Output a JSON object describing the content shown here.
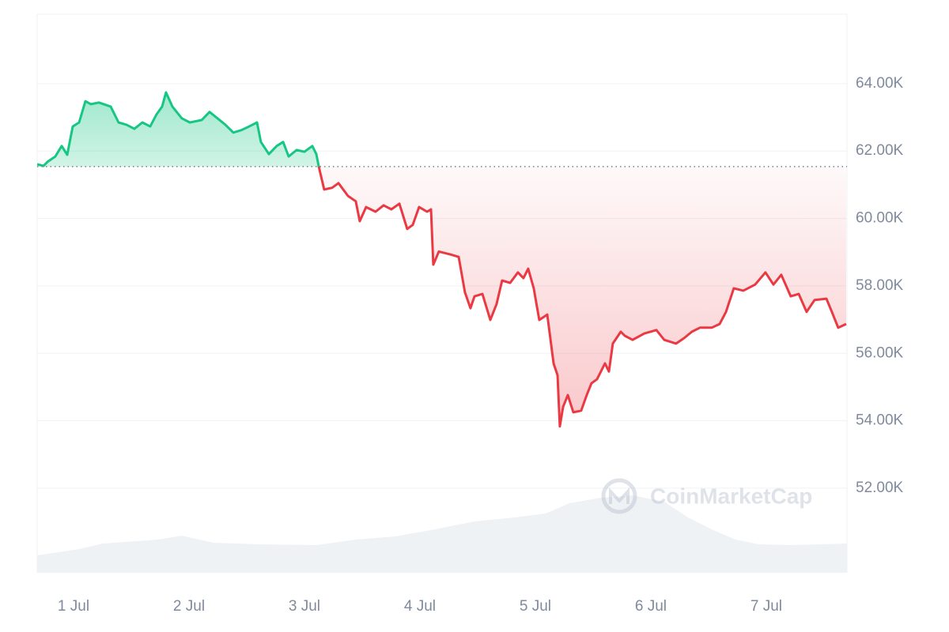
{
  "chart_data": {
    "type": "line",
    "watermark": "CoinMarketCap",
    "x": [
      0.685,
      0.74,
      0.774,
      0.842,
      0.897,
      0.945,
      0.993,
      1.048,
      1.103,
      1.151,
      1.219,
      1.322,
      1.39,
      1.459,
      1.527,
      1.596,
      1.664,
      1.719,
      1.767,
      1.801,
      1.856,
      1.938,
      2.007,
      2.11,
      2.178,
      2.247,
      2.315,
      2.384,
      2.452,
      2.521,
      2.589,
      2.623,
      2.692,
      2.76,
      2.815,
      2.863,
      2.932,
      3.0,
      3.068,
      3.103,
      3.123,
      3.171,
      3.24,
      3.295,
      3.377,
      3.445,
      3.479,
      3.534,
      3.616,
      3.685,
      3.753,
      3.822,
      3.89,
      3.938,
      3.993,
      4.062,
      4.096,
      4.116,
      4.164,
      4.267,
      4.336,
      4.39,
      4.438,
      4.473,
      4.541,
      4.61,
      4.664,
      4.712,
      4.781,
      4.849,
      4.897,
      4.938,
      4.986,
      5.034,
      5.103,
      5.158,
      5.192,
      5.212,
      5.24,
      5.281,
      5.329,
      5.397,
      5.445,
      5.486,
      5.534,
      5.603,
      5.637,
      5.671,
      5.74,
      5.774,
      5.842,
      5.945,
      6.048,
      6.116,
      6.219,
      6.288,
      6.356,
      6.425,
      6.527,
      6.596,
      6.651,
      6.719,
      6.801,
      6.904,
      6.993,
      7.062,
      7.13,
      7.212,
      7.281,
      7.349,
      7.418,
      7.521,
      7.568,
      7.623,
      7.692
    ],
    "series": [
      {
        "name": "Price",
        "color_up": "#16c784",
        "color_down": "#ea3943",
        "values": [
          61610,
          61560,
          61680,
          61840,
          62150,
          61890,
          62730,
          62850,
          63480,
          63390,
          63440,
          63320,
          62850,
          62780,
          62660,
          62850,
          62730,
          63090,
          63320,
          63740,
          63320,
          62970,
          62850,
          62920,
          63160,
          62970,
          62780,
          62550,
          62620,
          62730,
          62850,
          62270,
          61910,
          62150,
          62270,
          61840,
          62030,
          61980,
          62150,
          61910,
          61560,
          60860,
          60910,
          61050,
          60670,
          60510,
          59920,
          60340,
          60200,
          60390,
          60270,
          60440,
          59690,
          59810,
          60340,
          60200,
          60270,
          58630,
          59020,
          58930,
          58860,
          57810,
          57340,
          57690,
          57760,
          56990,
          57460,
          58160,
          58090,
          58400,
          58230,
          58510,
          57930,
          56990,
          57150,
          55700,
          55350,
          53830,
          54410,
          54760,
          54250,
          54300,
          54760,
          55110,
          55230,
          55700,
          55460,
          56290,
          56640,
          56520,
          56400,
          56590,
          56690,
          56400,
          56290,
          56450,
          56640,
          56760,
          56760,
          56870,
          57230,
          57930,
          57860,
          58040,
          58400,
          58040,
          58330,
          57690,
          57760,
          57230,
          57580,
          57620,
          57230,
          56760,
          56870
        ]
      }
    ],
    "baseline": 61540,
    "volume": {
      "color": "#eff2f5",
      "axis": "y2",
      "x": [
        0.685,
        1.048,
        1.253,
        1.733,
        1.938,
        2.212,
        2.623,
        3.103,
        3.445,
        3.788,
        4.13,
        4.473,
        4.815,
        5.089,
        5.295,
        5.568,
        5.842,
        6.116,
        6.322,
        6.527,
        6.733,
        6.938,
        7.212,
        7.699
      ],
      "values": [
        22,
        30,
        37,
        42,
        47,
        38,
        36,
        35,
        42,
        46,
        55,
        65,
        70,
        75,
        88,
        95,
        98,
        90,
        70,
        55,
        42,
        36,
        35,
        37
      ]
    },
    "xlim": [
      0.685,
      7.699
    ],
    "xticks": [
      {
        "value": 1,
        "label": "1 Jul"
      },
      {
        "value": 2,
        "label": "2 Jul"
      },
      {
        "value": 3,
        "label": "3 Jul"
      },
      {
        "value": 4,
        "label": "4 Jul"
      },
      {
        "value": 5,
        "label": "5 Jul"
      },
      {
        "value": 6,
        "label": "6 Jul"
      },
      {
        "value": 7,
        "label": "7 Jul"
      }
    ],
    "ylim": [
      49490,
      66060
    ],
    "yticks": [
      {
        "value": 52000,
        "label": "52.00K"
      },
      {
        "value": 54000,
        "label": "54.00K"
      },
      {
        "value": 56000,
        "label": "56.00K"
      },
      {
        "value": 58000,
        "label": "58.00K"
      },
      {
        "value": 60000,
        "label": "60.00K"
      },
      {
        "value": 62000,
        "label": "62.00K"
      },
      {
        "value": 64000,
        "label": "64.00K"
      }
    ],
    "y2lim": [
      0,
      100
    ],
    "grid": true
  }
}
